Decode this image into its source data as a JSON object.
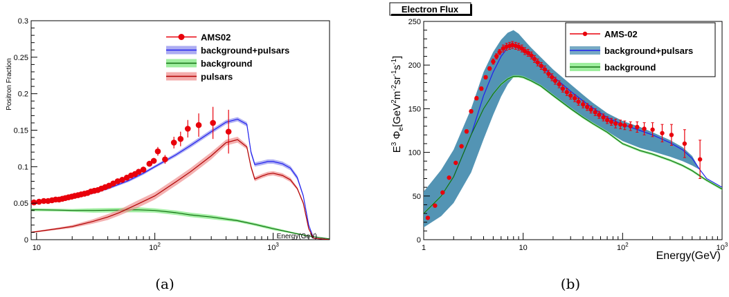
{
  "captions": [
    "(a)",
    "(b)"
  ],
  "chart_data": [
    {
      "type": "line",
      "title": "",
      "xlabel": "Energy(GeV)",
      "ylabel": "Positron Fraction",
      "xscale": "log",
      "xlim": [
        9,
        3000
      ],
      "ylim": [
        0,
        0.3
      ],
      "x_ticks": [
        10,
        100,
        1000
      ],
      "x_tick_labels": [
        "10",
        "10²",
        "10³"
      ],
      "y_ticks": [
        0,
        0.05,
        0.1,
        0.15,
        0.2,
        0.25,
        0.3
      ],
      "y_tick_labels": [
        "0",
        "0.05",
        "0.1",
        "0.15",
        "0.2",
        "0.25",
        "0.3"
      ],
      "grid": false,
      "legend_position": "top-right",
      "legend": [
        "AMS02",
        "background+pulsars",
        "background",
        "pulsars"
      ],
      "series": [
        {
          "name": "AMS02",
          "kind": "points",
          "color": "#e8000b",
          "x": [
            9.5,
            10.5,
            11.5,
            12.5,
            13.5,
            14.5,
            15.5,
            16.5,
            17.5,
            18.6,
            19.8,
            21.0,
            22.4,
            23.8,
            25.4,
            27.0,
            28.8,
            30.8,
            33.0,
            35.3,
            38.0,
            41.0,
            44.5,
            48.5,
            53.0,
            58.0,
            63.0,
            68.0,
            73.0,
            80.0,
            90.0,
            98.0,
            106.0,
            122.0,
            145.0,
            165.0,
            190.0,
            235.0,
            310.0,
            420.0
          ],
          "y": [
            0.051,
            0.052,
            0.053,
            0.053,
            0.054,
            0.055,
            0.055,
            0.056,
            0.057,
            0.058,
            0.059,
            0.06,
            0.061,
            0.062,
            0.063,
            0.064,
            0.066,
            0.067,
            0.068,
            0.07,
            0.072,
            0.074,
            0.077,
            0.08,
            0.082,
            0.085,
            0.088,
            0.09,
            0.093,
            0.096,
            0.104,
            0.108,
            0.121,
            0.11,
            0.133,
            0.138,
            0.152,
            0.157,
            0.16,
            0.148
          ],
          "yerr": [
            0.002,
            0.002,
            0.002,
            0.002,
            0.002,
            0.002,
            0.002,
            0.002,
            0.002,
            0.002,
            0.002,
            0.002,
            0.002,
            0.002,
            0.002,
            0.002,
            0.002,
            0.002,
            0.002,
            0.002,
            0.002,
            0.003,
            0.003,
            0.003,
            0.003,
            0.003,
            0.003,
            0.003,
            0.003,
            0.004,
            0.004,
            0.004,
            0.006,
            0.006,
            0.008,
            0.01,
            0.012,
            0.016,
            0.022,
            0.03
          ]
        },
        {
          "name": "background+pulsars",
          "kind": "band",
          "color": "#2020ee",
          "fill": "#9090ee",
          "x": [
            9,
            10,
            15,
            20,
            30,
            40,
            60,
            80,
            100,
            150,
            200,
            300,
            400,
            500,
            600,
            650,
            700,
            800,
            900,
            1000,
            1200,
            1400,
            1600,
            1800,
            2000,
            2200,
            3000
          ],
          "y": [
            0.05,
            0.051,
            0.055,
            0.058,
            0.064,
            0.07,
            0.081,
            0.091,
            0.1,
            0.116,
            0.129,
            0.148,
            0.161,
            0.165,
            0.158,
            0.12,
            0.103,
            0.105,
            0.107,
            0.107,
            0.104,
            0.098,
            0.085,
            0.06,
            0.02,
            0.002,
            0.0
          ],
          "band_halfwidth": [
            0.0015,
            0.0015,
            0.0015,
            0.0015,
            0.0015,
            0.0015,
            0.002,
            0.002,
            0.002,
            0.0025,
            0.003,
            0.003,
            0.003,
            0.003,
            0.003,
            0.003,
            0.003,
            0.003,
            0.003,
            0.003,
            0.003,
            0.003,
            0.003,
            0.002,
            0.001,
            0.0,
            0.0
          ]
        },
        {
          "name": "background",
          "kind": "band",
          "color": "#107010",
          "fill": "#7ee87e",
          "x": [
            9,
            10,
            15,
            20,
            30,
            50,
            70,
            100,
            150,
            200,
            300,
            500,
            700,
            1000,
            1500,
            2000,
            3000
          ],
          "y": [
            0.041,
            0.041,
            0.0405,
            0.04,
            0.04,
            0.0405,
            0.041,
            0.04,
            0.037,
            0.034,
            0.031,
            0.026,
            0.021,
            0.015,
            0.009,
            0.005,
            0.001
          ],
          "band_halfwidth": [
            0.002,
            0.002,
            0.002,
            0.002,
            0.003,
            0.003,
            0.0035,
            0.003,
            0.003,
            0.003,
            0.003,
            0.002,
            0.002,
            0.002,
            0.001,
            0.0005,
            0.0
          ]
        },
        {
          "name": "pulsars",
          "kind": "band",
          "color": "#b00000",
          "fill": "#f09090",
          "x": [
            9,
            10,
            15,
            20,
            30,
            40,
            50,
            70,
            100,
            150,
            200,
            300,
            400,
            500,
            600,
            650,
            700,
            800,
            900,
            1000,
            1200,
            1400,
            1600,
            1800,
            2000,
            2200,
            3000
          ],
          "y": [
            0.01,
            0.011,
            0.015,
            0.018,
            0.025,
            0.031,
            0.037,
            0.048,
            0.06,
            0.079,
            0.093,
            0.115,
            0.133,
            0.137,
            0.127,
            0.1,
            0.083,
            0.087,
            0.09,
            0.091,
            0.088,
            0.082,
            0.07,
            0.05,
            0.015,
            0.002,
            0.0
          ],
          "band_halfwidth": [
            0.001,
            0.001,
            0.0015,
            0.002,
            0.003,
            0.004,
            0.004,
            0.005,
            0.005,
            0.005,
            0.005,
            0.005,
            0.004,
            0.004,
            0.003,
            0.003,
            0.003,
            0.003,
            0.003,
            0.003,
            0.003,
            0.003,
            0.002,
            0.002,
            0.001,
            0.0,
            0.0
          ]
        }
      ]
    },
    {
      "type": "line",
      "title": "Electron Flux",
      "xlabel": "Energy(GeV)",
      "ylabel": "E³ Φe[GeV²m⁻²sr⁻¹s⁻¹]",
      "ylabel_parts": [
        "E",
        "3",
        " Φ",
        "e",
        "[GeV",
        "2",
        "m",
        "-2",
        "sr",
        "-1",
        "s",
        "-1",
        "]"
      ],
      "xscale": "log",
      "xlim": [
        1,
        1000
      ],
      "ylim": [
        0,
        250
      ],
      "x_ticks": [
        1,
        10,
        100,
        1000
      ],
      "x_tick_labels": [
        "1",
        "10",
        "10²",
        "10³"
      ],
      "y_ticks": [
        0,
        50,
        100,
        150,
        200,
        250
      ],
      "y_tick_labels": [
        "0",
        "50",
        "100",
        "150",
        "200",
        "250"
      ],
      "grid": false,
      "legend_position": "top-right",
      "legend": [
        "AMS-02",
        "background+pulsars",
        "background"
      ],
      "series": [
        {
          "name": "AMS-02",
          "kind": "points",
          "color": "#e8000b",
          "x": [
            1.1,
            1.3,
            1.55,
            1.8,
            2.1,
            2.4,
            2.7,
            3.0,
            3.4,
            3.8,
            4.2,
            4.6,
            5.0,
            5.4,
            5.8,
            6.3,
            6.8,
            7.3,
            7.8,
            8.4,
            9.0,
            9.7,
            10.4,
            11.2,
            12.1,
            13.0,
            14.0,
            15.2,
            16.5,
            18.0,
            19.5,
            21.0,
            23.0,
            25.0,
            27.5,
            30.0,
            33.0,
            36.0,
            40.0,
            44.0,
            48.0,
            53.0,
            58.0,
            64.0,
            70.0,
            77.0,
            85.0,
            95.0,
            105.0,
            120.0,
            140.0,
            165.0,
            200.0,
            250.0,
            310.0,
            420.0,
            600.0
          ],
          "y": [
            25,
            39,
            54,
            71,
            88,
            107,
            124,
            147,
            162,
            173,
            186,
            196,
            204,
            210,
            215,
            219,
            221,
            222,
            223,
            222,
            221,
            219,
            216,
            214,
            211,
            207,
            203,
            199,
            195,
            190,
            186,
            182,
            178,
            173,
            169,
            165,
            162,
            158,
            155,
            152,
            149,
            146,
            143,
            140,
            137,
            135,
            133,
            132,
            131,
            130,
            129,
            127,
            126,
            122,
            120,
            110,
            92
          ],
          "yerr": [
            1,
            1,
            1,
            1,
            1,
            1,
            2,
            2,
            2,
            2,
            2,
            2,
            3,
            3,
            3,
            4,
            4,
            4,
            4,
            4,
            4,
            4,
            4,
            4,
            4,
            4,
            4,
            4,
            4,
            4,
            4,
            4,
            4,
            4,
            4,
            4,
            4,
            4,
            4,
            4,
            4,
            4,
            4,
            4,
            4,
            4,
            5,
            5,
            5,
            5,
            6,
            7,
            8,
            10,
            12,
            16,
            22
          ]
        },
        {
          "name": "background+pulsars",
          "kind": "band",
          "color": "#2020ee",
          "fill": "#4a8eb0",
          "x": [
            1,
            1.5,
            2,
            3,
            4,
            5,
            6,
            7,
            8,
            9,
            10,
            12,
            15,
            20,
            30,
            40,
            50,
            70,
            100,
            150,
            200,
            300,
            400,
            500,
            600,
            700,
            1000
          ],
          "y": [
            30,
            50,
            72,
            120,
            165,
            192,
            210,
            220,
            224,
            222,
            218,
            210,
            200,
            187,
            170,
            159,
            151,
            140,
            132,
            125,
            120,
            111,
            103,
            93,
            80,
            70,
            60
          ],
          "lower": [
            14,
            27,
            42,
            77,
            115,
            143,
            164,
            178,
            186,
            187,
            186,
            182,
            176,
            165,
            150,
            140,
            134,
            124,
            113,
            105,
            101,
            95,
            90,
            85,
            80,
            70,
            60
          ],
          "upper": [
            55,
            80,
            103,
            150,
            192,
            215,
            229,
            237,
            240,
            236,
            230,
            220,
            209,
            195,
            178,
            166,
            157,
            145,
            136,
            129,
            123,
            114,
            106,
            96,
            80,
            70,
            60
          ]
        },
        {
          "name": "background",
          "kind": "band",
          "color": "#107010",
          "fill": "#7ee87e",
          "x": [
            1,
            1.5,
            2,
            3,
            4,
            5,
            6,
            7,
            8,
            9,
            10,
            12,
            15,
            20,
            30,
            40,
            50,
            70,
            100,
            150,
            200,
            300,
            400,
            500,
            600,
            700,
            1000
          ],
          "y": [
            30,
            50,
            72,
            120,
            150,
            167,
            178,
            184,
            187,
            187,
            186,
            182,
            176,
            165,
            150,
            140,
            133,
            123,
            110,
            102,
            98,
            91,
            85,
            79,
            73,
            68,
            58
          ],
          "band_halfwidth": [
            1,
            1,
            1,
            1,
            1,
            1,
            1.5,
            1.5,
            1.5,
            1.5,
            1.5,
            1.5,
            1.5,
            1.5,
            1.5,
            1.5,
            1.5,
            1.5,
            1.5,
            1.5,
            1.5,
            1.5,
            1.5,
            1.5,
            1.5,
            1.5,
            1.5
          ]
        }
      ]
    }
  ]
}
